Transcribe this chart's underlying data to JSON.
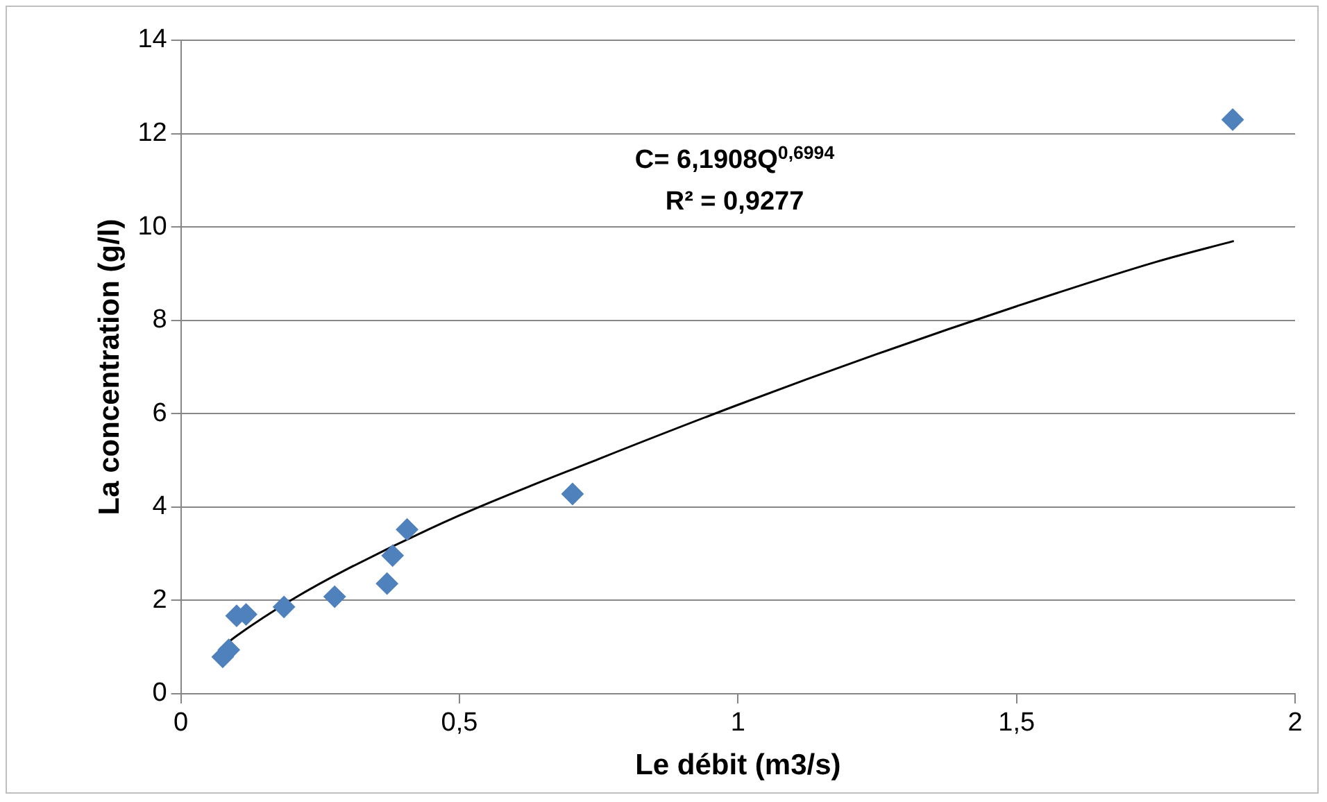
{
  "chart_data": {
    "type": "scatter",
    "xlabel": "Le débit (m3/s)",
    "ylabel": "La concentration (g/l)",
    "xlim": [
      0,
      2
    ],
    "xticks": [
      0,
      {
        "value": 0.5,
        "label": "0,5"
      },
      1,
      {
        "value": 1.5,
        "label": "1,5"
      },
      2
    ],
    "ylim": [
      0,
      14
    ],
    "yticks": [
      0,
      2,
      4,
      6,
      8,
      10,
      12,
      14
    ],
    "grid": "y",
    "legend": false,
    "marker": "diamond",
    "series": [
      {
        "color": "#4f81bd",
        "x": [
          0.075,
          0.086,
          0.1,
          0.117,
          0.185,
          0.276,
          0.37,
          0.38,
          0.406,
          0.703,
          1.888
        ],
        "values": [
          0.79,
          0.94,
          1.67,
          1.7,
          1.86,
          2.08,
          2.36,
          2.96,
          3.52,
          4.28,
          12.3
        ]
      },
      {
        "type": "line",
        "color": "#000000",
        "marker": "none",
        "x": [
          0.07,
          0.1,
          0.2,
          0.3,
          0.5,
          0.75,
          1,
          1.25,
          1.5,
          1.75,
          1.89
        ],
        "values": [
          0.96,
          1.24,
          2.02,
          2.68,
          3.82,
          5.03,
          6.19,
          7.28,
          8.3,
          9.25,
          9.7
        ]
      }
    ],
    "annotations": [
      "C= 6,1908Q$^{0,6994}$",
      "R² = 0,9277"
    ]
  }
}
